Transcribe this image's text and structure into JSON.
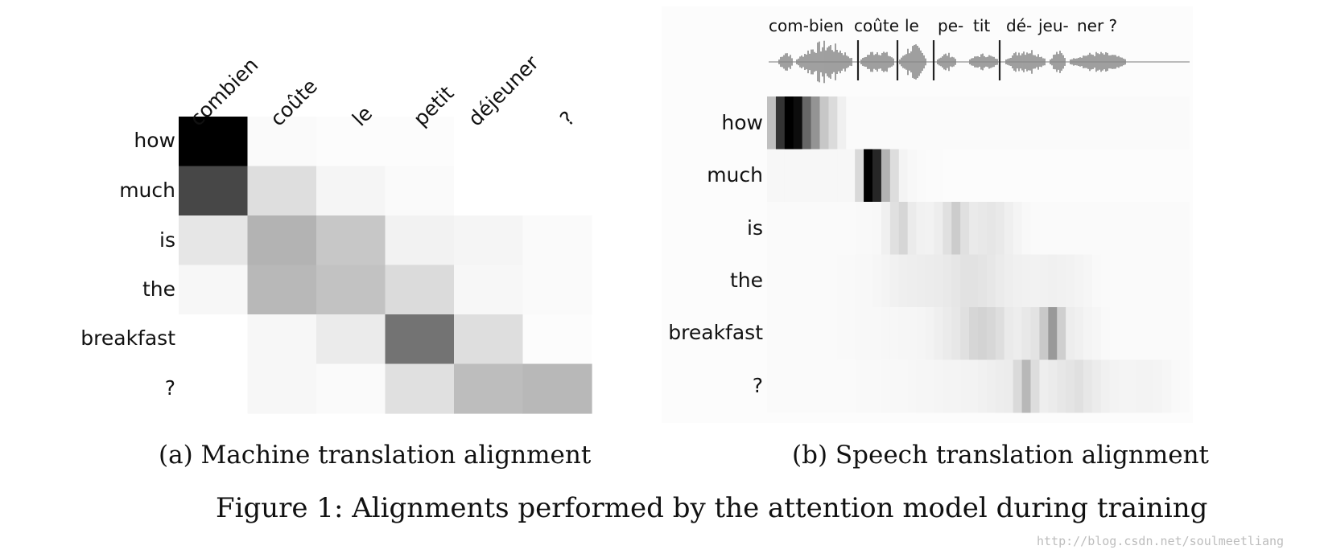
{
  "chart_data": [
    {
      "type": "heatmap",
      "id": "mt",
      "title": "(a) Machine translation alignment",
      "columns": [
        "combien",
        "coûte",
        "le",
        "petit",
        "déjeuner",
        "?"
      ],
      "rows": [
        "how",
        "much",
        "is",
        "the",
        "breakfast",
        "?"
      ],
      "values": [
        [
          1.0,
          0.02,
          0.01,
          0.01,
          0.0,
          0.0
        ],
        [
          0.72,
          0.13,
          0.04,
          0.02,
          0.0,
          0.0
        ],
        [
          0.1,
          0.3,
          0.22,
          0.05,
          0.04,
          0.02
        ],
        [
          0.03,
          0.28,
          0.24,
          0.14,
          0.03,
          0.02
        ],
        [
          0.0,
          0.03,
          0.08,
          0.55,
          0.13,
          0.01
        ],
        [
          0.0,
          0.03,
          0.02,
          0.12,
          0.26,
          0.28
        ]
      ]
    },
    {
      "type": "heatmap",
      "id": "st",
      "title": "(b) Speech translation alignment",
      "segments": [
        "com-bien",
        "coûte",
        "le",
        "pe-",
        "tit",
        "dé-",
        "jeu-",
        "ner ?"
      ],
      "rows": [
        "how",
        "much",
        "is",
        "the",
        "breakfast",
        "?"
      ],
      "row_profiles": [
        [
          [
            0.5,
            0.25
          ],
          [
            1.5,
            0.8
          ],
          [
            2.5,
            1.0
          ],
          [
            3.5,
            0.95
          ],
          [
            4.5,
            0.6
          ],
          [
            5.5,
            0.42
          ],
          [
            6.5,
            0.22
          ],
          [
            9,
            0.02
          ]
        ],
        [
          [
            9.5,
            0.03
          ],
          [
            10.5,
            0.15
          ],
          [
            11.5,
            1.0
          ],
          [
            12.5,
            0.85
          ],
          [
            13.5,
            0.3
          ],
          [
            15,
            0.05
          ],
          [
            17,
            0.02
          ],
          [
            21,
            0.01
          ]
        ],
        [
          [
            10,
            0.02
          ],
          [
            13,
            0.03
          ],
          [
            14.5,
            0.12
          ],
          [
            15.5,
            0.16
          ],
          [
            16.5,
            0.08
          ],
          [
            18,
            0.04
          ],
          [
            20,
            0.08
          ],
          [
            21.5,
            0.2
          ],
          [
            23,
            0.08
          ],
          [
            26,
            0.1
          ],
          [
            28,
            0.05
          ],
          [
            30,
            0.02
          ]
        ],
        [
          [
            7,
            0.02
          ],
          [
            12,
            0.03
          ],
          [
            15,
            0.06
          ],
          [
            20,
            0.08
          ],
          [
            23,
            0.12
          ],
          [
            25,
            0.1
          ],
          [
            27,
            0.07
          ],
          [
            30,
            0.05
          ],
          [
            33,
            0.06
          ],
          [
            36,
            0.04
          ],
          [
            38,
            0.02
          ]
        ],
        [
          [
            7,
            0.02
          ],
          [
            13,
            0.03
          ],
          [
            18,
            0.04
          ],
          [
            22,
            0.1
          ],
          [
            24,
            0.18
          ],
          [
            26,
            0.15
          ],
          [
            28,
            0.06
          ],
          [
            31,
            0.12
          ],
          [
            32.5,
            0.4
          ],
          [
            34,
            0.08
          ],
          [
            36,
            0.05
          ],
          [
            39,
            0.02
          ]
        ],
        [
          [
            9,
            0.02
          ],
          [
            16,
            0.03
          ],
          [
            24,
            0.05
          ],
          [
            28,
            0.08
          ],
          [
            29.5,
            0.28
          ],
          [
            31,
            0.06
          ],
          [
            34,
            0.1
          ],
          [
            35.5,
            0.12
          ],
          [
            37,
            0.08
          ],
          [
            40,
            0.04
          ],
          [
            44,
            0.05
          ],
          [
            47,
            0.02
          ]
        ]
      ]
    }
  ],
  "figure_caption": "Figure 1: Alignments performed by the attention model during training",
  "watermark": "http://blog.csdn.net/soulmeetliang"
}
